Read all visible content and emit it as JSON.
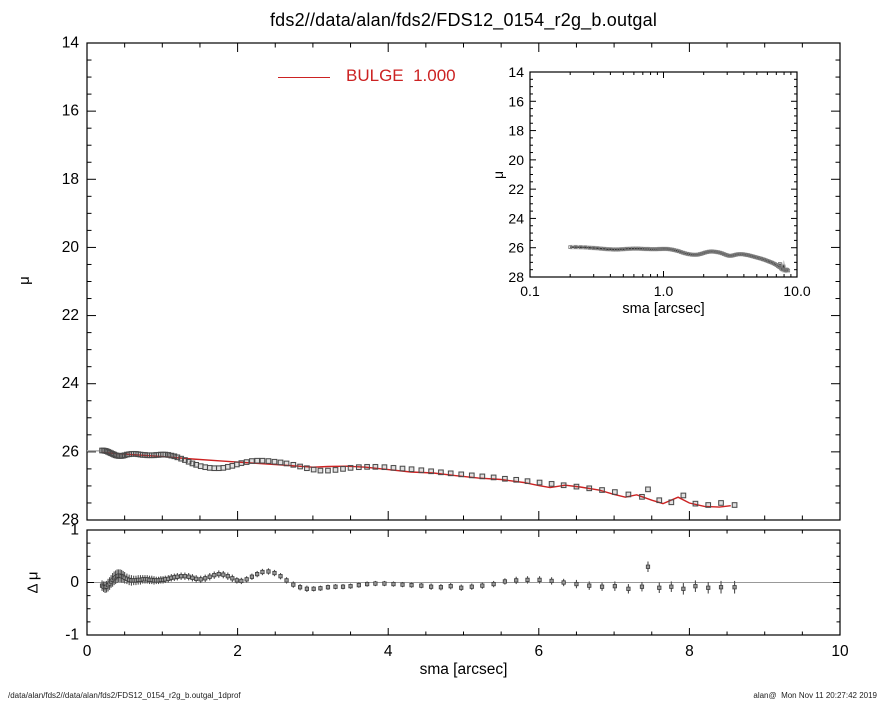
{
  "title": "fds2//data/alan/fds2/FDS12_0154_r2g_b.outgal",
  "legend": {
    "label": "BULGE  1.000",
    "color": "#cc2222"
  },
  "footer": {
    "left": "/data/alan/fds2//data/alan/fds2/FDS12_0154_r2g_b.outgal_1dprof",
    "right": "alan@  Mon Nov 11 20:27:42 2019"
  },
  "colors": {
    "frame": "#000000",
    "model_line": "#cc2222",
    "data_marker": "#4a4a4a",
    "marker_halo": "#c4c4c4",
    "residual_marker": "#3a3a3a",
    "zero_line": "#999999"
  },
  "chart_data": [
    {
      "id": "main",
      "type": "scatter",
      "title": "fds2//data/alan/fds2/FDS12_0154_r2g_b.outgal",
      "xlabel": "sma [arcsec]",
      "ylabel": "μ",
      "x_scale": "linear",
      "xlim": [
        0,
        10
      ],
      "ylim": [
        14,
        28
      ],
      "y_inverted": true,
      "x_major_ticks": [
        2,
        4,
        6,
        8
      ],
      "x_minor_step": 0.5,
      "y_major_ticks": [
        16,
        18,
        20,
        22,
        24,
        26
      ],
      "y_minor_step": 0.5,
      "y_tick_labels": [
        14,
        16,
        18,
        20,
        22,
        24,
        26,
        28
      ],
      "legend_position": "top-center",
      "grid": false,
      "series": [
        {
          "name": "profile",
          "type": "scatter",
          "marker": "open-square",
          "color": "#4a4a4a",
          "points": [
            [
              0.2,
              25.96
            ],
            [
              0.22,
              25.96
            ],
            [
              0.24,
              25.97
            ],
            [
              0.26,
              25.98
            ],
            [
              0.28,
              26.0
            ],
            [
              0.3,
              26.02
            ],
            [
              0.32,
              26.04
            ],
            [
              0.34,
              26.06
            ],
            [
              0.36,
              26.08
            ],
            [
              0.38,
              26.1
            ],
            [
              0.4,
              26.11
            ],
            [
              0.42,
              26.12
            ],
            [
              0.44,
              26.12
            ],
            [
              0.46,
              26.12
            ],
            [
              0.48,
              26.11
            ],
            [
              0.5,
              26.1
            ],
            [
              0.53,
              26.08
            ],
            [
              0.56,
              26.07
            ],
            [
              0.59,
              26.06
            ],
            [
              0.62,
              26.06
            ],
            [
              0.65,
              26.06
            ],
            [
              0.68,
              26.07
            ],
            [
              0.71,
              26.08
            ],
            [
              0.74,
              26.09
            ],
            [
              0.77,
              26.09
            ],
            [
              0.8,
              26.1
            ],
            [
              0.83,
              26.1
            ],
            [
              0.86,
              26.1
            ],
            [
              0.89,
              26.1
            ],
            [
              0.92,
              26.09
            ],
            [
              0.95,
              26.09
            ],
            [
              0.98,
              26.08
            ],
            [
              1.01,
              26.08
            ],
            [
              1.04,
              26.08
            ],
            [
              1.08,
              26.09
            ],
            [
              1.12,
              26.11
            ],
            [
              1.16,
              26.13
            ],
            [
              1.2,
              26.16
            ],
            [
              1.25,
              26.2
            ],
            [
              1.3,
              26.24
            ],
            [
              1.35,
              26.29
            ],
            [
              1.4,
              26.34
            ],
            [
              1.45,
              26.38
            ],
            [
              1.51,
              26.42
            ],
            [
              1.57,
              26.45
            ],
            [
              1.63,
              26.47
            ],
            [
              1.69,
              26.48
            ],
            [
              1.75,
              26.48
            ],
            [
              1.81,
              26.47
            ],
            [
              1.87,
              26.44
            ],
            [
              1.93,
              26.41
            ],
            [
              1.99,
              26.37
            ],
            [
              2.05,
              26.33
            ],
            [
              2.12,
              26.3
            ],
            [
              2.19,
              26.27
            ],
            [
              2.26,
              26.26
            ],
            [
              2.33,
              26.26
            ],
            [
              2.41,
              26.27
            ],
            [
              2.49,
              26.29
            ],
            [
              2.57,
              26.31
            ],
            [
              2.65,
              26.34
            ],
            [
              2.74,
              26.38
            ],
            [
              2.83,
              26.43
            ],
            [
              2.92,
              26.48
            ],
            [
              3.01,
              26.52
            ],
            [
              3.1,
              26.55
            ],
            [
              3.2,
              26.55
            ],
            [
              3.3,
              26.53
            ],
            [
              3.4,
              26.5
            ],
            [
              3.5,
              26.47
            ],
            [
              3.61,
              26.45
            ],
            [
              3.72,
              26.44
            ],
            [
              3.83,
              26.44
            ],
            [
              3.95,
              26.45
            ],
            [
              4.07,
              26.47
            ],
            [
              4.19,
              26.49
            ],
            [
              4.31,
              26.51
            ],
            [
              4.44,
              26.54
            ],
            [
              4.57,
              26.57
            ],
            [
              4.7,
              26.6
            ],
            [
              4.83,
              26.63
            ],
            [
              4.97,
              26.66
            ],
            [
              5.11,
              26.69
            ],
            [
              5.25,
              26.72
            ],
            [
              5.4,
              26.75
            ],
            [
              5.55,
              26.79
            ],
            [
              5.7,
              26.82
            ],
            [
              5.85,
              26.86
            ],
            [
              6.01,
              26.9
            ],
            [
              6.17,
              26.94
            ],
            [
              6.33,
              26.98
            ],
            [
              6.5,
              27.02
            ],
            [
              6.67,
              27.07
            ],
            [
              6.84,
              27.12
            ],
            [
              7.01,
              27.18
            ],
            [
              7.19,
              27.25
            ],
            [
              7.37,
              27.32
            ],
            [
              7.45,
              27.1
            ],
            [
              7.6,
              27.42
            ],
            [
              7.76,
              27.48
            ],
            [
              7.92,
              27.28
            ],
            [
              8.08,
              27.52
            ],
            [
              8.25,
              27.56
            ],
            [
              8.42,
              27.5
            ],
            [
              8.6,
              27.56
            ]
          ]
        },
        {
          "name": "BULGE  1.000",
          "type": "line",
          "color": "#cc2222",
          "points": [
            [
              0.2,
              26.02
            ],
            [
              0.6,
              26.08
            ],
            [
              1.0,
              26.14
            ],
            [
              1.4,
              26.21
            ],
            [
              1.8,
              26.27
            ],
            [
              2.2,
              26.33
            ],
            [
              2.6,
              26.39
            ],
            [
              3.0,
              26.45
            ],
            [
              3.2,
              26.43
            ],
            [
              3.45,
              26.42
            ],
            [
              3.7,
              26.45
            ],
            [
              4.0,
              26.52
            ],
            [
              4.3,
              26.59
            ],
            [
              4.6,
              26.62
            ],
            [
              4.9,
              26.7
            ],
            [
              5.2,
              26.77
            ],
            [
              5.5,
              26.81
            ],
            [
              5.8,
              26.9
            ],
            [
              6.0,
              26.99
            ],
            [
              6.15,
              27.05
            ],
            [
              6.35,
              26.98
            ],
            [
              6.55,
              27.03
            ],
            [
              6.8,
              27.12
            ],
            [
              7.0,
              27.25
            ],
            [
              7.15,
              27.33
            ],
            [
              7.3,
              27.26
            ],
            [
              7.5,
              27.42
            ],
            [
              7.65,
              27.52
            ],
            [
              7.85,
              27.33
            ],
            [
              8.0,
              27.5
            ],
            [
              8.2,
              27.6
            ],
            [
              8.4,
              27.62
            ],
            [
              8.55,
              27.58
            ]
          ]
        }
      ]
    },
    {
      "id": "inset",
      "type": "line",
      "xlabel": "sma [arcsec]",
      "ylabel": "μ",
      "x_scale": "log",
      "xlim": [
        0.1,
        10
      ],
      "ylim": [
        14,
        28
      ],
      "y_inverted": true,
      "x_major_ticks": [
        0.1,
        1,
        10
      ],
      "x_tick_values": [
        0.1,
        1,
        10
      ],
      "x_tick_labels": [
        "0.1",
        "1.0",
        "10.0"
      ],
      "y_major_ticks": [
        16,
        18,
        20,
        22,
        24,
        26
      ],
      "y_minor_step": 0.5,
      "y_tick_labels": [
        14,
        16,
        18,
        20,
        22,
        24,
        26,
        28
      ],
      "grid": false,
      "series_from": "profile"
    },
    {
      "id": "residual",
      "type": "scatter",
      "xlabel": "sma [arcsec]",
      "ylabel": "Δ μ",
      "x_scale": "linear",
      "xlim": [
        0,
        10
      ],
      "ylim": [
        -1,
        1
      ],
      "y_inverted": false,
      "x_major_ticks": [
        2,
        4,
        6,
        8
      ],
      "x_minor_step": 0.5,
      "y_major_ticks": [
        -1,
        0,
        1
      ],
      "y_minor_step": 0.25,
      "x_tick_labels": [
        0,
        2,
        4,
        6,
        8,
        10
      ],
      "y_tick_labels": [
        1,
        0,
        -1
      ],
      "zero_line": 0,
      "grid": false,
      "points_xyerr": [
        [
          0.2,
          -0.06,
          0.1
        ],
        [
          0.22,
          -0.08,
          0.1
        ],
        [
          0.24,
          -0.09,
          0.11
        ],
        [
          0.26,
          -0.08,
          0.11
        ],
        [
          0.28,
          -0.05,
          0.12
        ],
        [
          0.3,
          -0.02,
          0.12
        ],
        [
          0.32,
          0.02,
          0.12
        ],
        [
          0.34,
          0.05,
          0.13
        ],
        [
          0.36,
          0.08,
          0.13
        ],
        [
          0.38,
          0.1,
          0.13
        ],
        [
          0.4,
          0.12,
          0.13
        ],
        [
          0.42,
          0.13,
          0.12
        ],
        [
          0.44,
          0.13,
          0.12
        ],
        [
          0.46,
          0.12,
          0.12
        ],
        [
          0.48,
          0.11,
          0.11
        ],
        [
          0.5,
          0.09,
          0.11
        ],
        [
          0.53,
          0.07,
          0.1
        ],
        [
          0.56,
          0.05,
          0.1
        ],
        [
          0.59,
          0.04,
          0.1
        ],
        [
          0.62,
          0.04,
          0.09
        ],
        [
          0.65,
          0.04,
          0.09
        ],
        [
          0.68,
          0.05,
          0.09
        ],
        [
          0.71,
          0.05,
          0.09
        ],
        [
          0.74,
          0.06,
          0.08
        ],
        [
          0.77,
          0.06,
          0.08
        ],
        [
          0.8,
          0.06,
          0.08
        ],
        [
          0.83,
          0.05,
          0.08
        ],
        [
          0.86,
          0.05,
          0.08
        ],
        [
          0.89,
          0.04,
          0.08
        ],
        [
          0.92,
          0.04,
          0.07
        ],
        [
          0.95,
          0.04,
          0.07
        ],
        [
          0.98,
          0.05,
          0.07
        ],
        [
          1.01,
          0.05,
          0.07
        ],
        [
          1.04,
          0.06,
          0.07
        ],
        [
          1.08,
          0.07,
          0.07
        ],
        [
          1.12,
          0.09,
          0.07
        ],
        [
          1.16,
          0.1,
          0.07
        ],
        [
          1.2,
          0.11,
          0.07
        ],
        [
          1.25,
          0.12,
          0.07
        ],
        [
          1.3,
          0.12,
          0.07
        ],
        [
          1.35,
          0.11,
          0.07
        ],
        [
          1.4,
          0.09,
          0.07
        ],
        [
          1.45,
          0.07,
          0.07
        ],
        [
          1.51,
          0.06,
          0.07
        ],
        [
          1.57,
          0.08,
          0.07
        ],
        [
          1.63,
          0.11,
          0.07
        ],
        [
          1.69,
          0.14,
          0.07
        ],
        [
          1.75,
          0.16,
          0.07
        ],
        [
          1.81,
          0.15,
          0.07
        ],
        [
          1.87,
          0.12,
          0.07
        ],
        [
          1.93,
          0.08,
          0.07
        ],
        [
          1.99,
          0.04,
          0.06
        ],
        [
          2.05,
          0.03,
          0.06
        ],
        [
          2.12,
          0.06,
          0.06
        ],
        [
          2.19,
          0.11,
          0.06
        ],
        [
          2.26,
          0.16,
          0.06
        ],
        [
          2.33,
          0.2,
          0.06
        ],
        [
          2.41,
          0.21,
          0.06
        ],
        [
          2.49,
          0.18,
          0.06
        ],
        [
          2.57,
          0.12,
          0.06
        ],
        [
          2.65,
          0.04,
          0.06
        ],
        [
          2.74,
          -0.04,
          0.06
        ],
        [
          2.83,
          -0.09,
          0.06
        ],
        [
          2.92,
          -0.12,
          0.06
        ],
        [
          3.01,
          -0.12,
          0.05
        ],
        [
          3.1,
          -0.11,
          0.05
        ],
        [
          3.2,
          -0.09,
          0.05
        ],
        [
          3.3,
          -0.08,
          0.05
        ],
        [
          3.4,
          -0.08,
          0.05
        ],
        [
          3.5,
          -0.07,
          0.05
        ],
        [
          3.61,
          -0.05,
          0.05
        ],
        [
          3.72,
          -0.03,
          0.05
        ],
        [
          3.83,
          -0.02,
          0.05
        ],
        [
          3.95,
          -0.02,
          0.05
        ],
        [
          4.07,
          -0.03,
          0.05
        ],
        [
          4.19,
          -0.04,
          0.05
        ],
        [
          4.31,
          -0.05,
          0.05
        ],
        [
          4.44,
          -0.06,
          0.05
        ],
        [
          4.57,
          -0.08,
          0.06
        ],
        [
          4.7,
          -0.09,
          0.06
        ],
        [
          4.83,
          -0.07,
          0.06
        ],
        [
          4.97,
          -0.1,
          0.06
        ],
        [
          5.11,
          -0.08,
          0.06
        ],
        [
          5.25,
          -0.06,
          0.06
        ],
        [
          5.4,
          -0.03,
          0.06
        ],
        [
          5.55,
          0.02,
          0.06
        ],
        [
          5.7,
          0.04,
          0.07
        ],
        [
          5.85,
          0.05,
          0.07
        ],
        [
          6.01,
          0.05,
          0.07
        ],
        [
          6.17,
          0.03,
          0.07
        ],
        [
          6.33,
          0.0,
          0.07
        ],
        [
          6.5,
          -0.03,
          0.08
        ],
        [
          6.67,
          -0.06,
          0.08
        ],
        [
          6.84,
          -0.08,
          0.08
        ],
        [
          7.01,
          -0.07,
          0.09
        ],
        [
          7.19,
          -0.12,
          0.09
        ],
        [
          7.37,
          -0.08,
          0.09
        ],
        [
          7.45,
          0.3,
          0.1
        ],
        [
          7.6,
          -0.1,
          0.1
        ],
        [
          7.76,
          -0.08,
          0.1
        ],
        [
          7.92,
          -0.12,
          0.11
        ],
        [
          8.08,
          -0.07,
          0.11
        ],
        [
          8.25,
          -0.1,
          0.11
        ],
        [
          8.42,
          -0.09,
          0.12
        ],
        [
          8.6,
          -0.09,
          0.12
        ]
      ]
    }
  ]
}
